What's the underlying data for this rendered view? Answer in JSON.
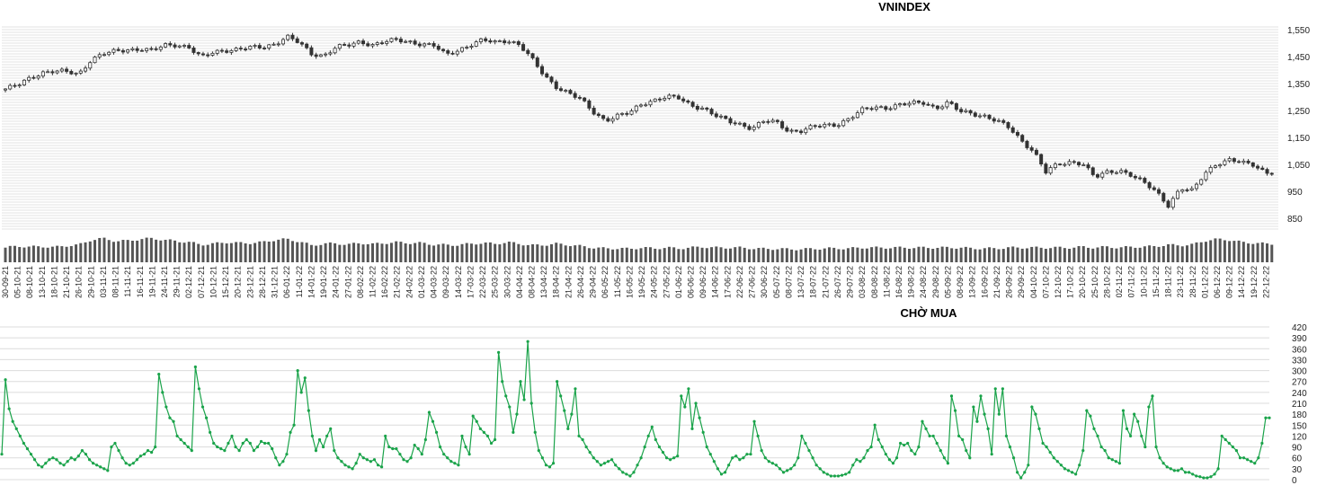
{
  "chart_data": [
    {
      "type": "candlestick",
      "title": "VNINDEX",
      "ylim": [
        800,
        1560
      ],
      "yticks": [
        850,
        950,
        1050,
        1150,
        1250,
        1350,
        1450,
        1550
      ],
      "ytick_labels": [
        "850",
        "950",
        "1,050",
        "1,150",
        "1,250",
        "1,350",
        "1,450",
        "1,550"
      ],
      "grid": true,
      "volume_bars": true,
      "up_color": "#ffffff",
      "down_color": "#333333",
      "dates": [
        "30-09-21",
        "05-10-21",
        "08-10-21",
        "13-10-21",
        "18-10-21",
        "21-10-21",
        "26-10-21",
        "29-10-21",
        "03-11-21",
        "08-11-21",
        "11-11-21",
        "16-11-21",
        "19-11-21",
        "24-11-21",
        "29-11-21",
        "02-12-21",
        "07-12-21",
        "10-12-21",
        "15-12-21",
        "20-12-21",
        "23-12-21",
        "28-12-21",
        "31-12-21",
        "06-01-22",
        "11-01-22",
        "14-01-22",
        "19-01-22",
        "24-01-22",
        "27-01-22",
        "08-02-22",
        "11-02-22",
        "16-02-22",
        "21-02-22",
        "24-02-22",
        "01-03-22",
        "04-03-22",
        "09-03-22",
        "14-03-22",
        "17-03-22",
        "22-03-22",
        "25-03-22",
        "30-03-22",
        "04-04-22",
        "08-04-22",
        "13-04-22",
        "18-04-22",
        "21-04-22",
        "26-04-22",
        "29-04-22",
        "06-05-22",
        "11-05-22",
        "16-05-22",
        "19-05-22",
        "24-05-22",
        "27-05-22",
        "01-06-22",
        "06-06-22",
        "09-06-22",
        "14-06-22",
        "17-06-22",
        "22-06-22",
        "27-06-22",
        "30-06-22",
        "05-07-22",
        "08-07-22",
        "13-07-22",
        "18-07-22",
        "21-07-22",
        "26-07-22",
        "29-07-22",
        "03-08-22",
        "08-08-22",
        "11-08-22",
        "16-08-22",
        "19-08-22",
        "24-08-22",
        "29-08-22",
        "05-09-22",
        "08-09-22",
        "13-09-22",
        "16-09-22",
        "21-09-22",
        "26-09-22",
        "29-09-22",
        "04-10-22",
        "07-10-22",
        "12-10-22",
        "17-10-22",
        "20-10-22",
        "25-10-22",
        "28-10-22",
        "02-11-22",
        "07-11-22",
        "10-11-22",
        "15-11-22",
        "18-11-22",
        "23-11-22",
        "28-11-22",
        "01-12-22",
        "06-12-22",
        "09-12-22",
        "14-12-22",
        "19-12-22",
        "22-12-22"
      ],
      "close": [
        1330,
        1342,
        1370,
        1392,
        1396,
        1392,
        1385,
        1440,
        1460,
        1468,
        1476,
        1480,
        1472,
        1490,
        1495,
        1486,
        1445,
        1465,
        1475,
        1478,
        1482,
        1484,
        1498,
        1525,
        1500,
        1460,
        1455,
        1485,
        1490,
        1505,
        1495,
        1505,
        1510,
        1505,
        1498,
        1490,
        1455,
        1475,
        1495,
        1510,
        1502,
        1512,
        1495,
        1440,
        1380,
        1340,
        1315,
        1290,
        1245,
        1215,
        1230,
        1240,
        1275,
        1290,
        1300,
        1295,
        1270,
        1260,
        1230,
        1210,
        1200,
        1185,
        1210,
        1205,
        1175,
        1175,
        1188,
        1195,
        1200,
        1222,
        1250,
        1262,
        1262,
        1270,
        1275,
        1280,
        1260,
        1278,
        1245,
        1240,
        1230,
        1210,
        1185,
        1140,
        1100,
        1020,
        1050,
        1060,
        1055,
        1000,
        1020,
        1030,
        1010,
        980,
        950,
        900,
        960,
        950,
        1020,
        1055,
        1065,
        1055,
        1050,
        1020
      ],
      "volume": [
        38,
        42,
        40,
        41,
        39,
        43,
        45,
        58,
        62,
        55,
        56,
        60,
        62,
        58,
        55,
        52,
        46,
        48,
        52,
        50,
        50,
        52,
        58,
        60,
        54,
        44,
        48,
        49,
        46,
        50,
        47,
        50,
        52,
        50,
        50,
        46,
        45,
        45,
        48,
        50,
        48,
        52,
        48,
        44,
        45,
        48,
        45,
        42,
        38,
        36,
        36,
        35,
        38,
        36,
        38,
        36,
        38,
        40,
        38,
        38,
        38,
        36,
        35,
        35,
        34,
        34,
        35,
        36,
        36,
        36,
        38,
        38,
        38,
        38,
        38,
        38,
        38,
        38,
        38,
        36,
        36,
        36,
        38,
        38,
        38,
        38,
        38,
        38,
        40,
        38,
        40,
        38,
        40,
        40,
        42,
        45,
        44,
        46,
        56,
        60,
        58,
        52,
        50,
        48
      ]
    },
    {
      "type": "line",
      "title": "CHỜ MUA",
      "ylim": [
        0,
        420
      ],
      "yticks": [
        0,
        30,
        60,
        90,
        120,
        150,
        180,
        210,
        240,
        270,
        300,
        330,
        360,
        390,
        420
      ],
      "grid": true,
      "color": "#1aa34a",
      "values": [
        70,
        275,
        195,
        160,
        140,
        120,
        100,
        85,
        70,
        55,
        40,
        35,
        45,
        55,
        60,
        55,
        45,
        40,
        50,
        60,
        55,
        65,
        80,
        70,
        55,
        45,
        40,
        35,
        30,
        25,
        90,
        100,
        80,
        60,
        45,
        40,
        45,
        55,
        65,
        70,
        80,
        75,
        90,
        290,
        240,
        200,
        170,
        160,
        120,
        110,
        100,
        90,
        80,
        310,
        250,
        200,
        170,
        130,
        100,
        90,
        85,
        80,
        100,
        120,
        90,
        80,
        100,
        110,
        100,
        80,
        90,
        105,
        100,
        100,
        85,
        60,
        40,
        50,
        70,
        130,
        150,
        300,
        240,
        280,
        190,
        120,
        80,
        110,
        90,
        120,
        140,
        80,
        60,
        50,
        40,
        35,
        30,
        45,
        70,
        60,
        55,
        50,
        55,
        40,
        35,
        120,
        90,
        85,
        85,
        70,
        55,
        50,
        60,
        95,
        85,
        70,
        110,
        185,
        160,
        130,
        90,
        70,
        60,
        50,
        45,
        40,
        120,
        90,
        70,
        175,
        160,
        140,
        130,
        120,
        100,
        110,
        350,
        270,
        230,
        200,
        130,
        180,
        270,
        220,
        380,
        210,
        130,
        80,
        60,
        40,
        35,
        45,
        270,
        230,
        190,
        140,
        180,
        250,
        120,
        110,
        90,
        75,
        60,
        50,
        40,
        45,
        50,
        55,
        40,
        30,
        20,
        15,
        10,
        20,
        40,
        60,
        90,
        120,
        145,
        110,
        90,
        75,
        60,
        55,
        60,
        65,
        230,
        200,
        250,
        140,
        210,
        170,
        130,
        90,
        70,
        50,
        30,
        15,
        20,
        40,
        60,
        65,
        55,
        60,
        70,
        70,
        160,
        120,
        80,
        60,
        50,
        45,
        40,
        30,
        20,
        25,
        30,
        40,
        60,
        120,
        100,
        80,
        60,
        40,
        30,
        20,
        15,
        10,
        10,
        10,
        12,
        15,
        20,
        40,
        55,
        50,
        60,
        80,
        90,
        150,
        110,
        90,
        70,
        55,
        45,
        60,
        100,
        95,
        100,
        80,
        70,
        90,
        160,
        140,
        120,
        120,
        100,
        80,
        60,
        45,
        230,
        190,
        120,
        110,
        80,
        60,
        200,
        160,
        230,
        180,
        140,
        70,
        250,
        180,
        250,
        120,
        90,
        60,
        20,
        5,
        20,
        40,
        200,
        180,
        140,
        100,
        90,
        75,
        60,
        50,
        40,
        30,
        25,
        20,
        15,
        40,
        80,
        190,
        175,
        140,
        120,
        90,
        80,
        60,
        55,
        50,
        45,
        190,
        140,
        120,
        180,
        160,
        120,
        90,
        200,
        230,
        90,
        60,
        45,
        35,
        30,
        25,
        25,
        30,
        20,
        20,
        15,
        10,
        8,
        5,
        5,
        8,
        15,
        30,
        120,
        110,
        100,
        90,
        80,
        60,
        60,
        55,
        50,
        45,
        60,
        100,
        170,
        170
      ]
    }
  ]
}
